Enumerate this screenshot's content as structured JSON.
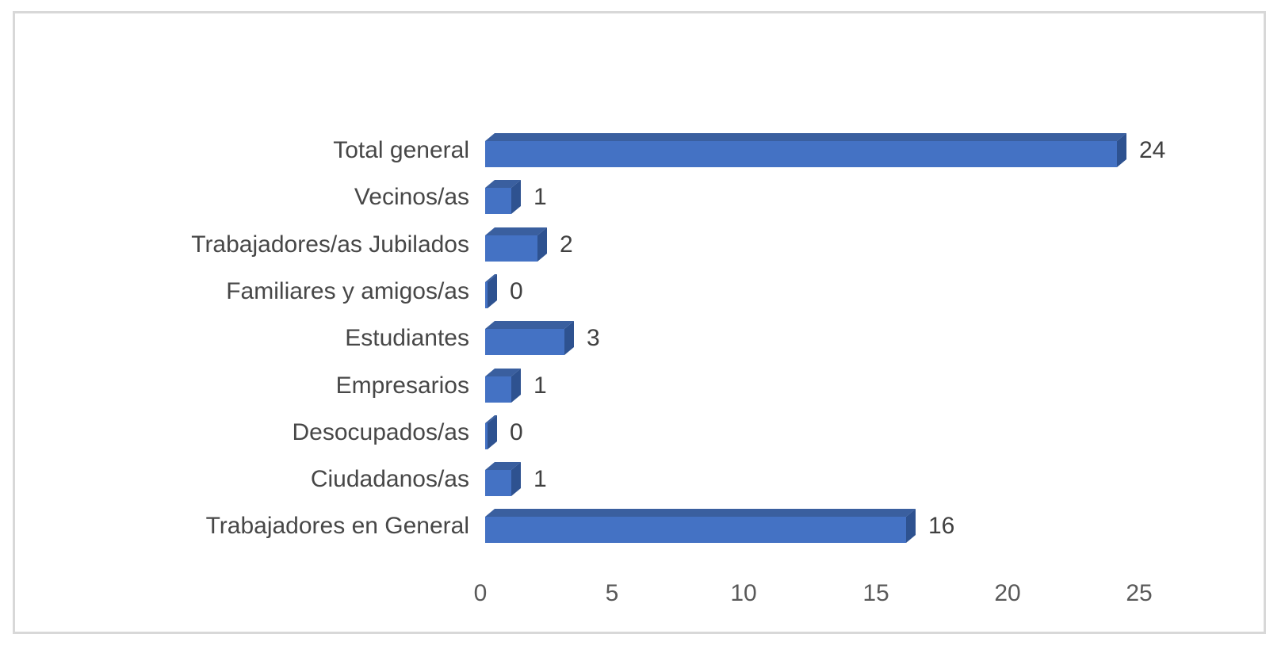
{
  "chart_data": {
    "type": "bar",
    "orientation": "horizontal",
    "style": "3d",
    "title": "",
    "xlabel": "",
    "ylabel": "",
    "legend": "none",
    "grid": false,
    "categories": [
      "Total general",
      "Vecinos/as",
      "Trabajadores/as Jubilados",
      "Familiares y amigos/as",
      "Estudiantes",
      "Empresarios",
      "Desocupados/as",
      "Ciudadanos/as",
      "Trabajadores en General"
    ],
    "values": [
      24,
      1,
      2,
      0,
      3,
      1,
      0,
      1,
      16
    ],
    "value_labels": [
      "24",
      "1",
      "2",
      "0",
      "3",
      "1",
      "0",
      "1",
      "16"
    ],
    "x_ticks": [
      "0",
      "5",
      "10",
      "15",
      "20",
      "25"
    ],
    "xlim": [
      0,
      25
    ],
    "colors": {
      "bar_front": "#4472C4",
      "bar_top": "#3A5F9F",
      "bar_side": "#2E5290",
      "category_text": "#474747",
      "value_text": "#404040",
      "tick_text": "#595959",
      "frame_border": "#D8D8D8",
      "background": "#FFFFFF"
    }
  }
}
